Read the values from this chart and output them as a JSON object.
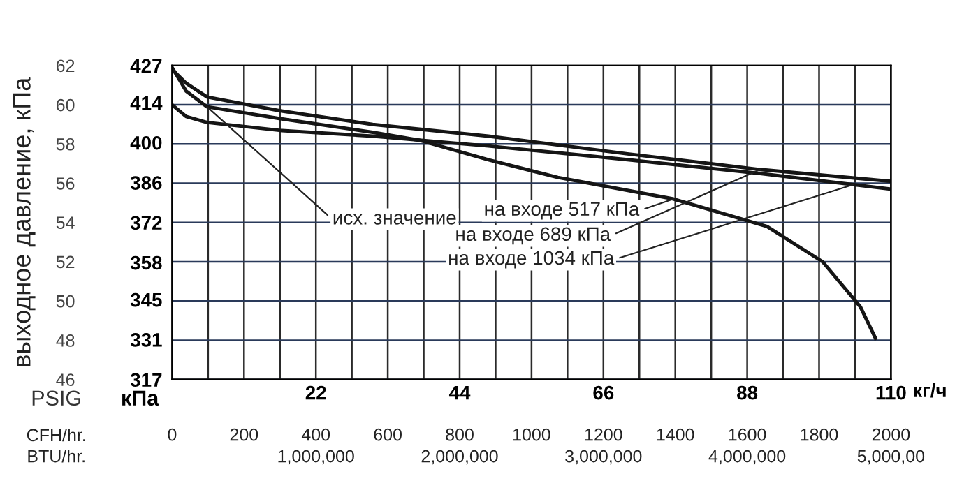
{
  "chart_data": {
    "type": "line",
    "ylabel": "выходное давление, кПа",
    "xlabel": "CFH/hr.",
    "x2label": "кг/ч",
    "series": [
      {
        "name": "на входе 517 кПа",
        "color": "#151515",
        "x": [
          0,
          39,
          97,
          298,
          558,
          686,
          880,
          1073,
          1395,
          1655,
          1810,
          1915,
          1957
        ],
        "values": [
          61.9,
          60.7,
          59.9,
          59.3,
          58.6,
          58.2,
          57.2,
          56.3,
          55.2,
          53.8,
          52.0,
          49.7,
          48.1
        ]
      },
      {
        "name": "на входе 689 кПа",
        "color": "#151515",
        "x": [
          0,
          39,
          97,
          298,
          558,
          880,
          1267,
          1636,
          2000
        ],
        "values": [
          61.8,
          61.1,
          60.4,
          59.7,
          59.0,
          58.4,
          57.5,
          56.7,
          56.1
        ]
      },
      {
        "name": "на входе 1034 кПа",
        "color": "#151515",
        "x": [
          0,
          39,
          97,
          298,
          558,
          880,
          1267,
          1636,
          2000
        ],
        "values": [
          60.0,
          59.4,
          59.1,
          58.7,
          58.4,
          57.9,
          57.2,
          56.5,
          55.7
        ]
      }
    ],
    "annotations": [
      "PSIG",
      "кПа",
      {
        "text": "исх. значение",
        "x": 97,
        "y": 59.9
      },
      "BTU/hr.",
      "1,000,000",
      "2,000,000",
      "3,000,000",
      "4,000,000",
      "5,000,00"
    ],
    "xlim": [
      0,
      2000
    ],
    "xticks": [
      0,
      200,
      400,
      600,
      800,
      1000,
      1200,
      1400,
      1600,
      1800,
      2000
    ],
    "x2lim": [
      0,
      110
    ],
    "x2ticks": [
      22,
      44,
      66,
      88,
      110
    ],
    "ylim": [
      46,
      62
    ],
    "yticks": [
      46,
      48,
      50,
      52,
      54,
      56,
      58,
      60,
      62
    ],
    "y2lim": [
      317,
      427
    ],
    "y2ticks": [
      317,
      331,
      345,
      358,
      372,
      386,
      400,
      414,
      427
    ],
    "grid": true
  }
}
